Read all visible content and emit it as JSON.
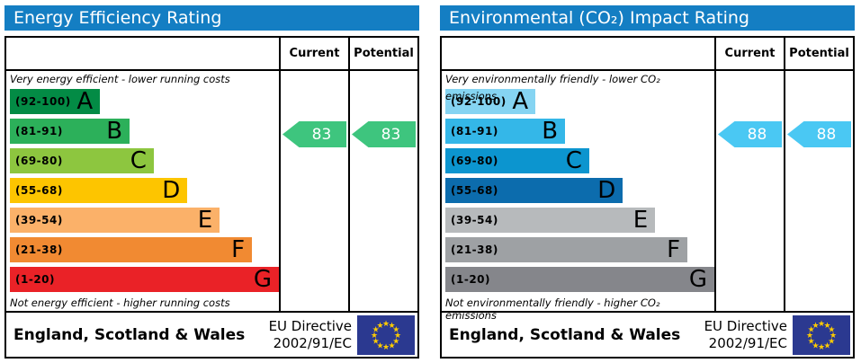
{
  "shared": {
    "current_label": "Current",
    "potential_label": "Potential",
    "footer_region": "England, Scotland & Wales",
    "directive_line1": "EU Directive",
    "directive_line2": "2002/91/EC",
    "eu_flag": {
      "background": "#2b3990",
      "star_color": "#ffcc00"
    }
  },
  "chart_data": [
    {
      "type": "bar",
      "title": "Energy Efficiency Rating",
      "header_color": "#147ec3",
      "top_caption": "Very energy efficient - lower running costs",
      "bottom_caption": "Not energy efficient - higher running costs",
      "legend_position": "none",
      "axis_range": [
        1,
        100
      ],
      "bands": [
        {
          "label": "A",
          "range": "(92-100)",
          "min": 92,
          "max": 100,
          "color": "#038b45",
          "width_pct": 33.5
        },
        {
          "label": "B",
          "range": "(81-91)",
          "min": 81,
          "max": 91,
          "color": "#2cb05a",
          "width_pct": 44.5
        },
        {
          "label": "C",
          "range": "(69-80)",
          "min": 69,
          "max": 80,
          "color": "#8dc63f",
          "width_pct": 53.5
        },
        {
          "label": "D",
          "range": "(55-68)",
          "min": 55,
          "max": 68,
          "color": "#fdc500",
          "width_pct": 66
        },
        {
          "label": "E",
          "range": "(39-54)",
          "min": 39,
          "max": 54,
          "color": "#fbb169",
          "width_pct": 78
        },
        {
          "label": "F",
          "range": "(21-38)",
          "min": 21,
          "max": 38,
          "color": "#f18a32",
          "width_pct": 90
        },
        {
          "label": "G",
          "range": "(1-20)",
          "min": 1,
          "max": 20,
          "color": "#ea2227",
          "width_pct": 100
        }
      ],
      "current": 83,
      "potential": 83,
      "arrow_color": "#3ec57e"
    },
    {
      "type": "bar",
      "title": "Environmental (CO₂) Impact Rating",
      "header_color": "#147ec3",
      "top_caption": "Very environmentally friendly - lower CO₂ emissions",
      "bottom_caption": "Not environmentally friendly - higher CO₂ emissions",
      "legend_position": "none",
      "axis_range": [
        1,
        100
      ],
      "bands": [
        {
          "label": "A",
          "range": "(92-100)",
          "min": 92,
          "max": 100,
          "color": "#85d4f2",
          "width_pct": 33.5
        },
        {
          "label": "B",
          "range": "(81-91)",
          "min": 81,
          "max": 91,
          "color": "#34b7e8",
          "width_pct": 44.5
        },
        {
          "label": "C",
          "range": "(69-80)",
          "min": 69,
          "max": 80,
          "color": "#0c95cf",
          "width_pct": 53.5
        },
        {
          "label": "D",
          "range": "(55-68)",
          "min": 55,
          "max": 68,
          "color": "#0c6cad",
          "width_pct": 66
        },
        {
          "label": "E",
          "range": "(39-54)",
          "min": 39,
          "max": 54,
          "color": "#b7babc",
          "width_pct": 78
        },
        {
          "label": "F",
          "range": "(21-38)",
          "min": 21,
          "max": 38,
          "color": "#9ea1a4",
          "width_pct": 90
        },
        {
          "label": "G",
          "range": "(1-20)",
          "min": 1,
          "max": 20,
          "color": "#85868b",
          "width_pct": 100
        }
      ],
      "current": 88,
      "potential": 88,
      "arrow_color": "#4ac8f3"
    }
  ]
}
